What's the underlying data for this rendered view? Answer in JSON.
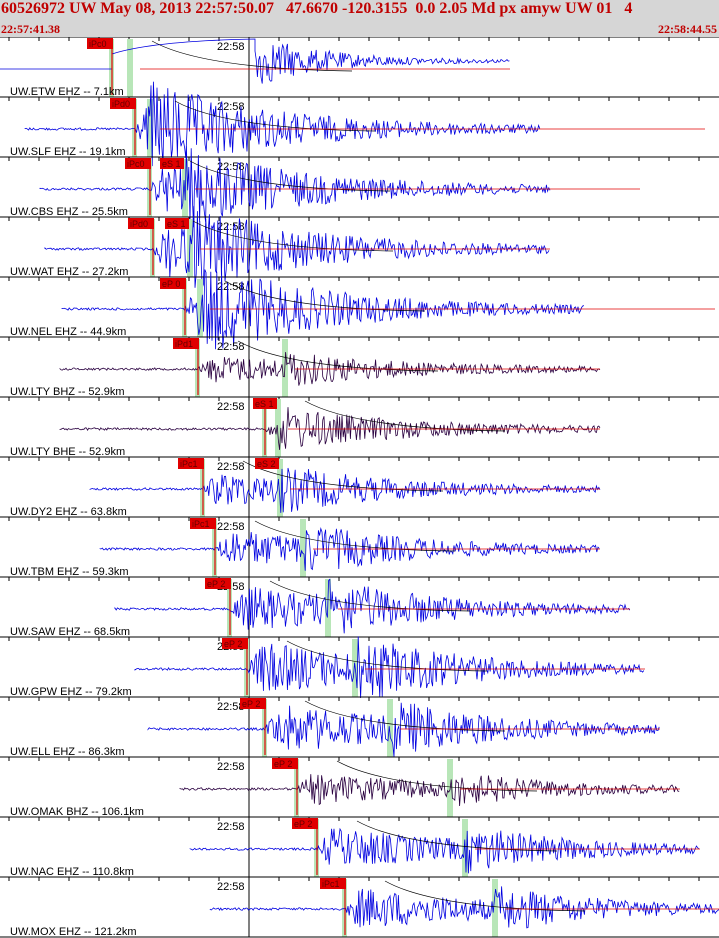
{
  "header": {
    "title": "60526972 UW May 08, 2013 22:57:50.07   47.6670 -120.3155  0.0 2.05 Md px amyw UW 01   4",
    "start_time": "22:57:41.38",
    "end_time": "22:58:44.55"
  },
  "colors": {
    "header_bg": "#d6d6d6",
    "header_text": "#c00000",
    "trace_blue": "#0000e0",
    "trace_dark": "#2a0040",
    "pick_box": "#e00000",
    "pick_window": "#b8e6b8",
    "fit_curve": "#000000"
  },
  "time_marker_label": "22:58",
  "traces": [
    {
      "label": "UW.ETW EHZ -- 7.1km",
      "pick": "iPc0",
      "pick2": "",
      "color": "blue"
    },
    {
      "label": "UW.SLF EHZ -- 19.1km",
      "pick": "iPd0",
      "pick2": "",
      "color": "blue"
    },
    {
      "label": "UW.CBS EHZ -- 25.5km",
      "pick": "iPc0",
      "pick2": "eS 1",
      "color": "blue"
    },
    {
      "label": "UW.WAT EHZ -- 27.2km",
      "pick": "iPd0",
      "pick2": "eS 1",
      "color": "blue"
    },
    {
      "label": "UW.NEL EHZ -- 44.9km",
      "pick": "eP 0",
      "pick2": "",
      "color": "blue"
    },
    {
      "label": "UW.LTY BHZ -- 52.9km",
      "pick": "iPd1",
      "pick2": "",
      "color": "dark"
    },
    {
      "label": "UW.LTY BHE -- 52.9km",
      "pick": "",
      "pick2": "eS 1",
      "color": "dark"
    },
    {
      "label": "UW.DY2 EHZ -- 63.8km",
      "pick": "iPc1",
      "pick2": "eS 2",
      "color": "blue"
    },
    {
      "label": "UW.TBM EHZ -- 59.3km",
      "pick": "iPc1",
      "pick2": "",
      "color": "blue"
    },
    {
      "label": "UW.SAW EHZ -- 68.5km",
      "pick": "eP 2",
      "pick2": "",
      "color": "blue"
    },
    {
      "label": "UW.GPW EHZ -- 79.2km",
      "pick": "eP 2",
      "pick2": "",
      "color": "blue"
    },
    {
      "label": "UW.ELL EHZ -- 86.3km",
      "pick": "eP 2",
      "pick2": "",
      "color": "blue"
    },
    {
      "label": "UW.OMAK BHZ -- 106.1km",
      "pick": "eP 2",
      "pick2": "",
      "color": "dark"
    },
    {
      "label": "UW.NAC EHZ -- 110.8km",
      "pick": "eP 2",
      "pick2": "",
      "color": "blue"
    },
    {
      "label": "UW.MOX EHZ -- 121.2km",
      "pick": "iPc1",
      "pick2": "",
      "color": "blue"
    }
  ]
}
